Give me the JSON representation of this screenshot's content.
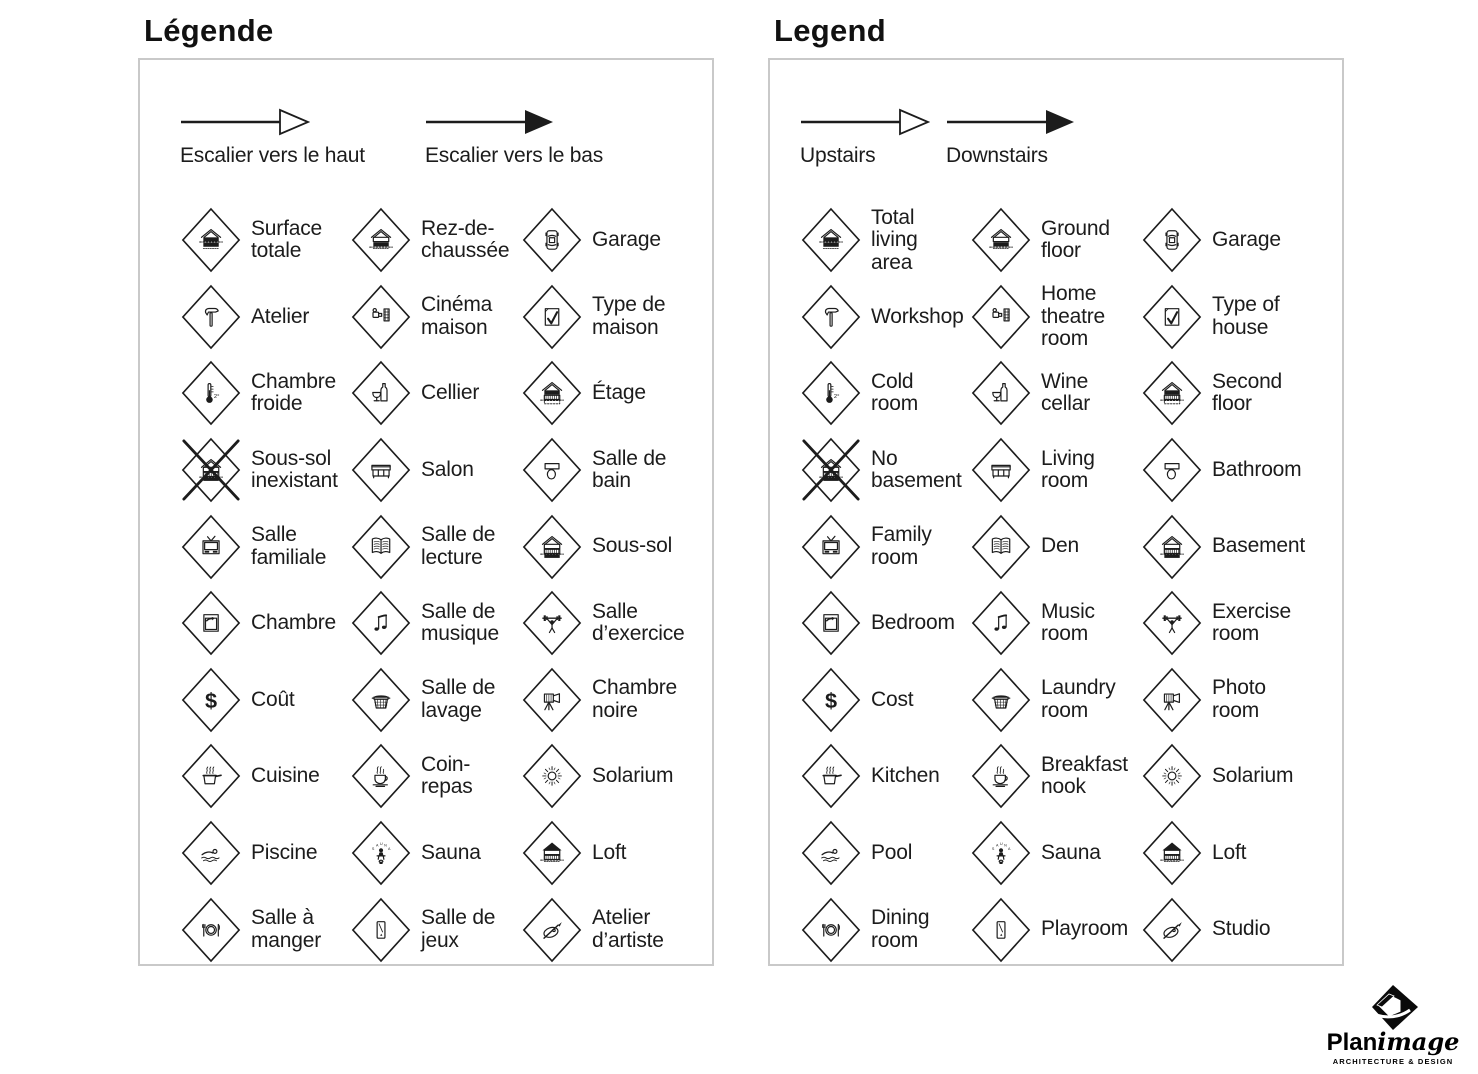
{
  "page": {
    "bg": "#ffffff",
    "ink": "#1c1c1c",
    "panel_border": "#c9c9c9"
  },
  "panels": [
    {
      "id": "french",
      "title": "Légende",
      "arrows": [
        {
          "icon": "stairs-up-arrow",
          "style": "outline",
          "label": "Escalier vers le haut"
        },
        {
          "icon": "stairs-down-arrow",
          "style": "filled",
          "label": "Escalier vers le bas"
        }
      ],
      "items": [
        {
          "icon": "total-living-area",
          "label": "Surface\ntotale"
        },
        {
          "icon": "ground-floor",
          "label": "Rez-de-\nchaussée"
        },
        {
          "icon": "garage",
          "label": "Garage"
        },
        {
          "icon": "workshop",
          "label": "Atelier"
        },
        {
          "icon": "home-theatre",
          "label": "Cinéma\nmaison"
        },
        {
          "icon": "type-of-house",
          "label": "Type de\nmaison"
        },
        {
          "icon": "cold-room",
          "label": "Chambre\nfroide"
        },
        {
          "icon": "wine-cellar",
          "label": "Cellier"
        },
        {
          "icon": "second-floor",
          "label": "Étage"
        },
        {
          "icon": "no-basement",
          "label": "Sous-sol\ninexistant"
        },
        {
          "icon": "living-room",
          "label": "Salon"
        },
        {
          "icon": "bathroom",
          "label": "Salle de\nbain"
        },
        {
          "icon": "family-room",
          "label": "Salle\nfamiliale"
        },
        {
          "icon": "den",
          "label": "Salle de\nlecture"
        },
        {
          "icon": "basement",
          "label": "Sous-sol"
        },
        {
          "icon": "bedroom",
          "label": "Chambre"
        },
        {
          "icon": "music-room",
          "label": "Salle de\nmusique"
        },
        {
          "icon": "exercise-room",
          "label": "Salle\nd’exercice"
        },
        {
          "icon": "cost",
          "label": "Coût"
        },
        {
          "icon": "laundry-room",
          "label": "Salle de\nlavage"
        },
        {
          "icon": "photo-room",
          "label": "Chambre\nnoire"
        },
        {
          "icon": "kitchen",
          "label": "Cuisine"
        },
        {
          "icon": "breakfast-nook",
          "label": "Coin-\nrepas"
        },
        {
          "icon": "solarium",
          "label": "Solarium"
        },
        {
          "icon": "pool",
          "label": "Piscine"
        },
        {
          "icon": "sauna",
          "label": "Sauna"
        },
        {
          "icon": "loft",
          "label": "Loft"
        },
        {
          "icon": "dining-room",
          "label": "Salle à\nmanger"
        },
        {
          "icon": "playroom",
          "label": "Salle de\njeux"
        },
        {
          "icon": "studio",
          "label": "Atelier\nd’artiste"
        }
      ]
    },
    {
      "id": "english",
      "title": "Legend",
      "arrows": [
        {
          "icon": "stairs-up-arrow",
          "style": "outline",
          "label": "Upstairs"
        },
        {
          "icon": "stairs-down-arrow",
          "style": "filled",
          "label": "Downstairs"
        }
      ],
      "items": [
        {
          "icon": "total-living-area",
          "label": "Total\nliving\narea"
        },
        {
          "icon": "ground-floor",
          "label": "Ground\nfloor"
        },
        {
          "icon": "garage",
          "label": "Garage"
        },
        {
          "icon": "workshop",
          "label": "Workshop"
        },
        {
          "icon": "home-theatre",
          "label": "Home\ntheatre\nroom"
        },
        {
          "icon": "type-of-house",
          "label": "Type of\nhouse"
        },
        {
          "icon": "cold-room",
          "label": "Cold\nroom"
        },
        {
          "icon": "wine-cellar",
          "label": "Wine\ncellar"
        },
        {
          "icon": "second-floor",
          "label": "Second\nfloor"
        },
        {
          "icon": "no-basement",
          "label": "No\nbasement"
        },
        {
          "icon": "living-room",
          "label": "Living\nroom"
        },
        {
          "icon": "bathroom",
          "label": "Bathroom"
        },
        {
          "icon": "family-room",
          "label": "Family\nroom"
        },
        {
          "icon": "den",
          "label": "Den"
        },
        {
          "icon": "basement",
          "label": "Basement"
        },
        {
          "icon": "bedroom",
          "label": "Bedroom"
        },
        {
          "icon": "music-room",
          "label": "Music\nroom"
        },
        {
          "icon": "exercise-room",
          "label": "Exercise\nroom"
        },
        {
          "icon": "cost",
          "label": "Cost"
        },
        {
          "icon": "laundry-room",
          "label": "Laundry\nroom"
        },
        {
          "icon": "photo-room",
          "label": "Photo\nroom"
        },
        {
          "icon": "kitchen",
          "label": "Kitchen"
        },
        {
          "icon": "breakfast-nook",
          "label": "Breakfast\nnook"
        },
        {
          "icon": "solarium",
          "label": "Solarium"
        },
        {
          "icon": "pool",
          "label": "Pool"
        },
        {
          "icon": "sauna",
          "label": "Sauna"
        },
        {
          "icon": "loft",
          "label": "Loft"
        },
        {
          "icon": "dining-room",
          "label": "Dining\nroom"
        },
        {
          "icon": "playroom",
          "label": "Playroom"
        },
        {
          "icon": "studio",
          "label": "Studio"
        }
      ]
    }
  ],
  "logo": {
    "bold": "Plan",
    "italic": "image",
    "tagline": "ARCHITECTURE & DESIGN"
  }
}
